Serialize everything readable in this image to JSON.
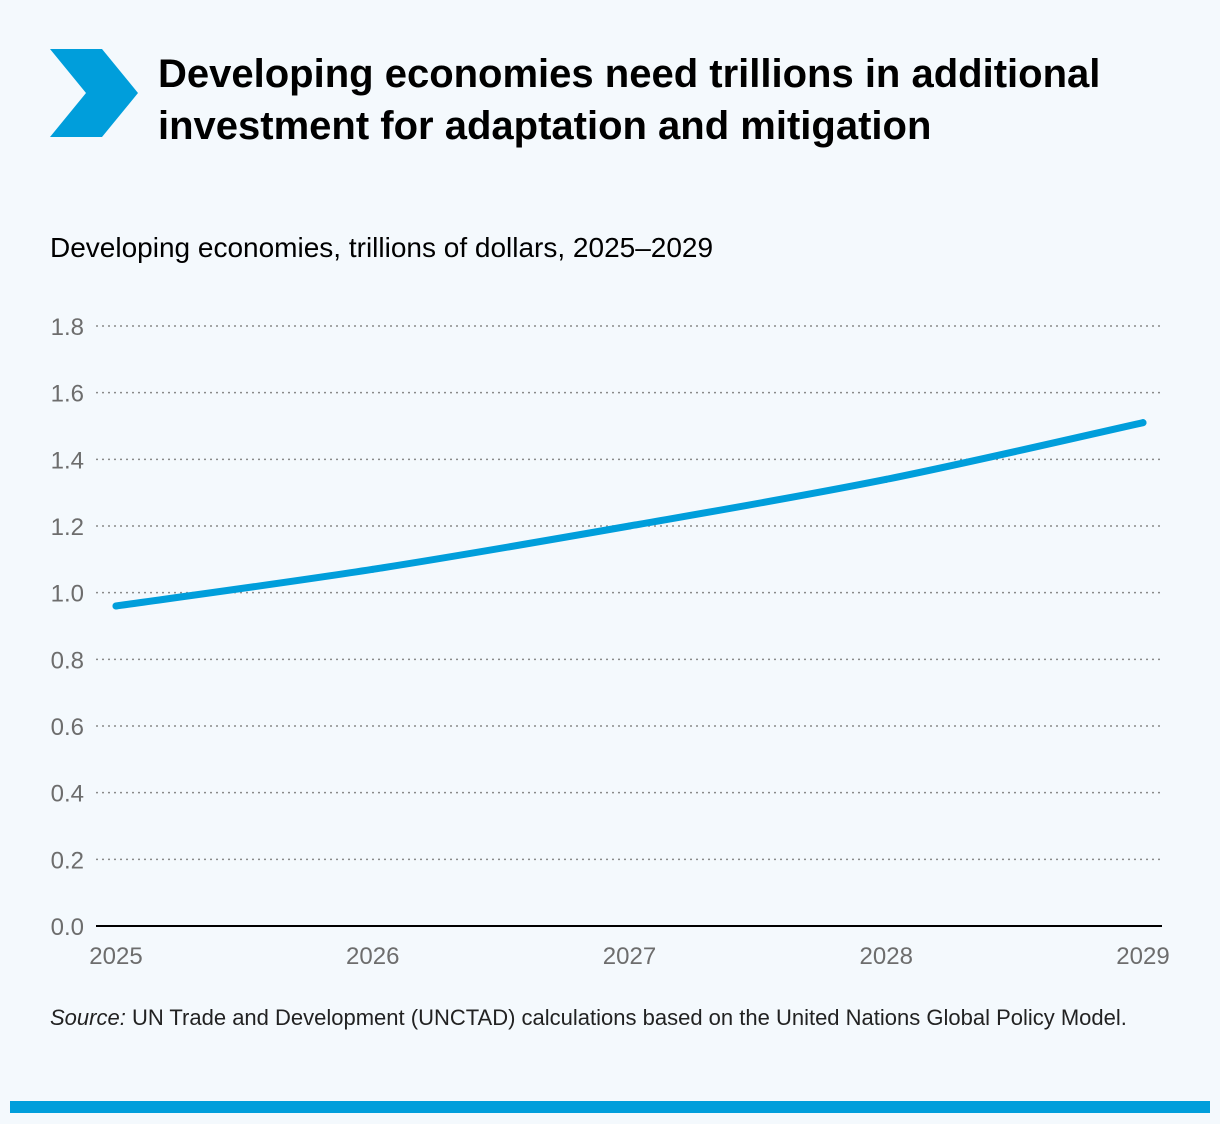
{
  "header": {
    "title": "Developing economies need trillions in additional investment for adaptation and mitigation",
    "subtitle": "Developing economies, trillions of dollars, 2025–2029",
    "accent_color": "#009edb",
    "icon": "chevron-right-icon"
  },
  "chart_data": {
    "type": "line",
    "x": [
      "2025",
      "2026",
      "2027",
      "2028",
      "2029"
    ],
    "series": [
      {
        "values": [
          0.96,
          1.07,
          1.2,
          1.34,
          1.51
        ],
        "color": "#009edb"
      }
    ],
    "yticks": [
      "0.0",
      "0.2",
      "0.4",
      "0.6",
      "0.8",
      "1.0",
      "1.2",
      "1.4",
      "1.6",
      "1.8"
    ],
    "ylim": [
      0,
      1.8
    ],
    "grid": true,
    "legend": "none"
  },
  "footer": {
    "source_label": "Source:",
    "source_text": " UN Trade and Development (UNCTAD) calculations based on the United Nations Global Policy Model."
  }
}
